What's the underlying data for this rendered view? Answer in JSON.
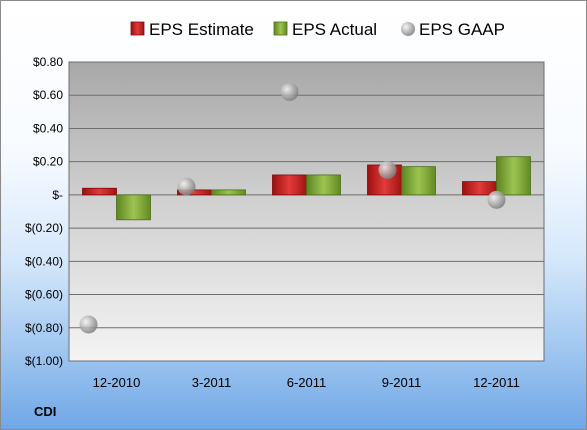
{
  "ticker": "CDI",
  "chart_data": {
    "type": "bar",
    "categories": [
      "12-2010",
      "3-2011",
      "6-2011",
      "9-2011",
      "12-2011"
    ],
    "series": [
      {
        "name": "EPS Estimate",
        "kind": "bar",
        "color": "#d42a2a",
        "values": [
          0.04,
          0.03,
          0.12,
          0.18,
          0.08
        ]
      },
      {
        "name": "EPS Actual",
        "kind": "bar",
        "color": "#8cb43c",
        "values": [
          -0.15,
          0.03,
          0.12,
          0.17,
          0.23
        ]
      },
      {
        "name": "EPS GAAP",
        "kind": "marker",
        "color": "#b0b0b0",
        "values": [
          -0.78,
          0.05,
          0.62,
          0.15,
          -0.03
        ]
      }
    ],
    "ylim": [
      -1.0,
      0.8
    ],
    "yticks": [
      0.8,
      0.6,
      0.4,
      0.2,
      0,
      -0.2,
      -0.4,
      -0.6,
      -0.8,
      -1.0
    ],
    "ytick_labels": [
      "$0.80",
      "$0.60",
      "$0.40",
      "$0.20",
      "$-",
      "$(0.20)",
      "$(0.40)",
      "$(0.60)",
      "$(0.80)",
      "$(1.00)"
    ],
    "legend": "top",
    "grid": true
  }
}
